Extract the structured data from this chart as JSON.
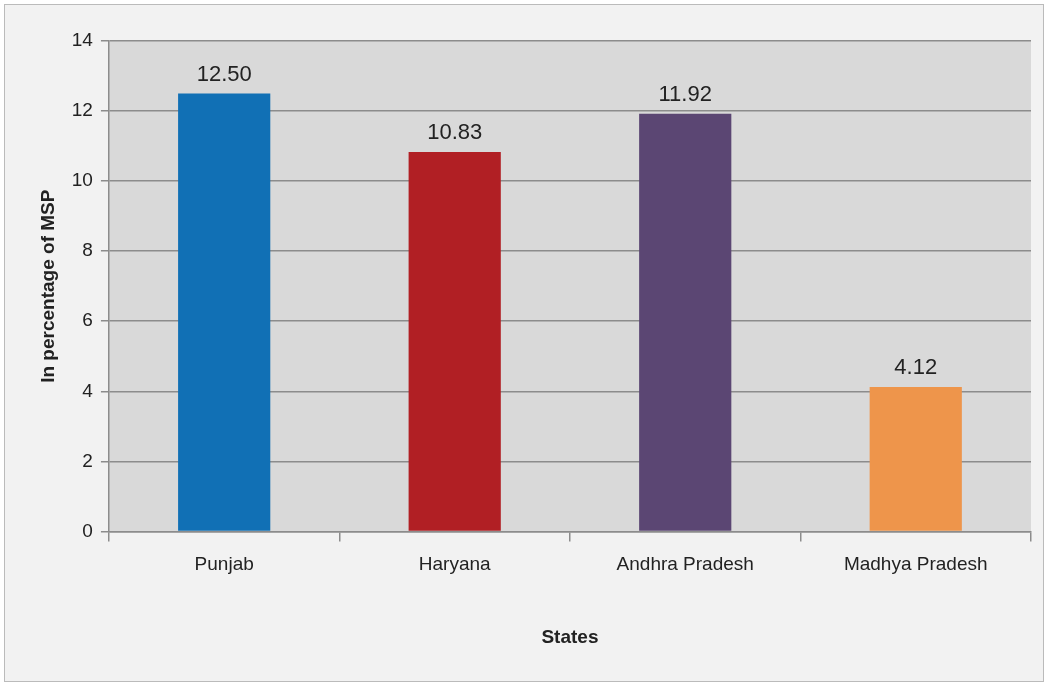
{
  "chart_data": {
    "type": "bar",
    "xlabel": "States",
    "ylabel": "In percentage of MSP",
    "categories": [
      "Punjab",
      "Haryana",
      "Andhra Pradesh",
      "Madhya Pradesh"
    ],
    "values": [
      12.5,
      10.83,
      11.92,
      4.12
    ],
    "value_labels": [
      "12.50",
      "10.83",
      "11.92",
      "4.12"
    ],
    "colors": [
      "#1170b5",
      "#b11f24",
      "#5b4673",
      "#ee954b"
    ],
    "ylim": [
      0,
      14
    ],
    "yticks": [
      0,
      2,
      4,
      6,
      8,
      10,
      12,
      14
    ],
    "grid": "y",
    "legend": false
  }
}
